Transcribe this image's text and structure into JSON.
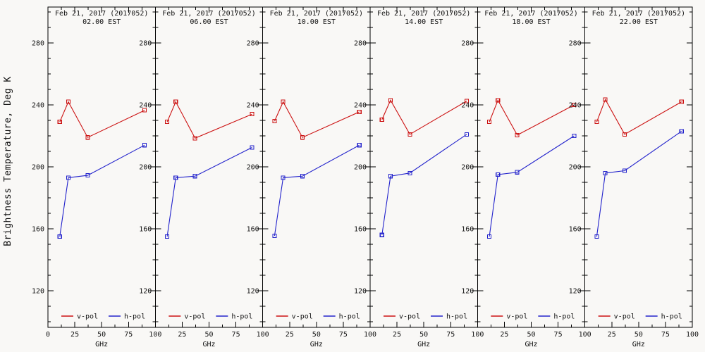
{
  "chart_data": {
    "type": "line",
    "title_date": "Feb 21, 2017 (2017052)",
    "ylabel": "Brightness Temperature, Deg K",
    "xlabel": "GHz",
    "x": [
      11,
      19,
      37,
      90
    ],
    "x_ticks": [
      0,
      25,
      50,
      75,
      100
    ],
    "x_minor_step": 12.5,
    "y_ticks": [
      120,
      160,
      200,
      240,
      280
    ],
    "y_minor_step": 10,
    "ylim": [
      100,
      300
    ],
    "xlim": [
      0,
      100
    ],
    "grid": false,
    "legend_position": "bottom-inside-each-panel",
    "legend": [
      {
        "name": "v-pol",
        "color": "#cc1111"
      },
      {
        "name": "h-pol",
        "color": "#2222cc"
      }
    ],
    "panels": [
      {
        "time": "02.00 EST",
        "v_pol": [
          229,
          242,
          219,
          236.5
        ],
        "h_pol": [
          155,
          193,
          194.5,
          214
        ]
      },
      {
        "time": "06.00 EST",
        "v_pol": [
          229,
          242,
          218.5,
          234
        ],
        "h_pol": [
          155,
          193,
          194,
          212.5
        ]
      },
      {
        "time": "10.00 EST",
        "v_pol": [
          229.5,
          242,
          219,
          235.5
        ],
        "h_pol": [
          155.5,
          193,
          194,
          214
        ]
      },
      {
        "time": "14.00 EST",
        "v_pol": [
          230.5,
          243,
          221,
          242.5
        ],
        "h_pol": [
          156,
          194,
          196,
          221
        ]
      },
      {
        "time": "18.00 EST",
        "v_pol": [
          229,
          243,
          220.5,
          240
        ],
        "h_pol": [
          155,
          195,
          196.5,
          220
        ]
      },
      {
        "time": "22.00 EST",
        "v_pol": [
          229,
          243.5,
          221,
          242
        ],
        "h_pol": [
          155,
          196,
          197.5,
          223
        ]
      }
    ]
  }
}
